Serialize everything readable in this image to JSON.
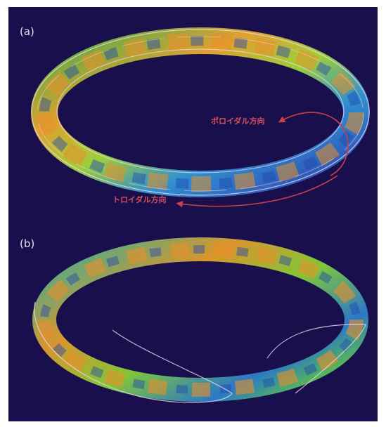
{
  "panels": [
    {
      "label": "(a)",
      "annotations": [
        "ポロイダル方向",
        "トロイダル方向"
      ]
    },
    {
      "label": "(b)"
    }
  ]
}
